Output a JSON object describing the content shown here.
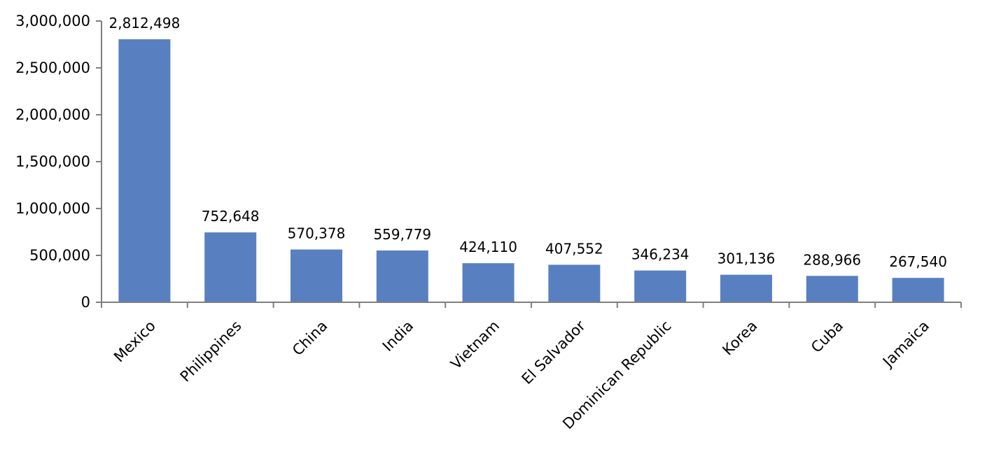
{
  "chart_data": {
    "type": "bar",
    "categories": [
      "Mexico",
      "Philippines",
      "China",
      "India",
      "Vietnam",
      "El Salvador",
      "Dominican Republic",
      "Korea",
      "Cuba",
      "Jamaica"
    ],
    "values": [
      2812498,
      752648,
      570378,
      559779,
      424110,
      407552,
      346234,
      301136,
      288966,
      267540
    ],
    "data_labels": [
      "2,812,498",
      "752,648",
      "570,378",
      "559,779",
      "424,110",
      "407,552",
      "346,234",
      "301,136",
      "288,966",
      "267,540"
    ],
    "y_ticks": [
      0,
      500000,
      1000000,
      1500000,
      2000000,
      2500000,
      3000000
    ],
    "y_tick_labels": [
      "0",
      "500,000",
      "1,000,000",
      "1,500,000",
      "2,000,000",
      "2,500,000",
      "3,000,000"
    ],
    "ylim": [
      0,
      3000000
    ],
    "title": "",
    "xlabel": "",
    "ylabel": "",
    "grid": false,
    "bar_color": "#5880c0",
    "bar_edge_color": "#ffffff",
    "axis_color": "#7f7f7f"
  }
}
